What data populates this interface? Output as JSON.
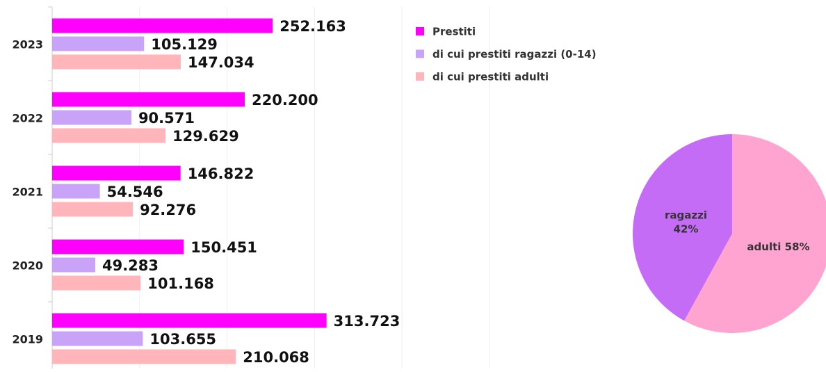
{
  "chart_data": [
    {
      "type": "hbar",
      "categories": [
        "2023",
        "2022",
        "2021",
        "2020",
        "2019"
      ],
      "series": [
        {
          "name": "Prestiti",
          "color": "#ff00ff",
          "values": [
            252163,
            220200,
            146822,
            150451,
            313723
          ],
          "value_labels": [
            "252.163",
            "220.200",
            "146.822",
            "150.451",
            "313.723"
          ]
        },
        {
          "name": "di cui prestiti ragazzi (0-14)",
          "color": "#c9a3f7",
          "values": [
            105129,
            90571,
            54546,
            49283,
            103655
          ],
          "value_labels": [
            "105.129",
            "90.571",
            "54.546",
            "49.283",
            "103.655"
          ]
        },
        {
          "name": "di cui prestiti adulti",
          "color": "#ffb5ba",
          "values": [
            147034,
            129629,
            92276,
            101168,
            210068
          ],
          "value_labels": [
            "147.034",
            "129.629",
            "92.276",
            "101.168",
            "210.068"
          ]
        }
      ],
      "xlim": [
        0,
        500000
      ],
      "xticks": [
        0,
        100000,
        200000,
        300000,
        400000,
        500000
      ],
      "grid": true,
      "legend": "top-right"
    },
    {
      "type": "pie",
      "categories": [
        "adulti",
        "ragazzi"
      ],
      "values": [
        58,
        42
      ],
      "value_labels": [
        "58%",
        "42%"
      ],
      "colors": [
        "#ffa3d1",
        "#c56cf7"
      ]
    }
  ]
}
